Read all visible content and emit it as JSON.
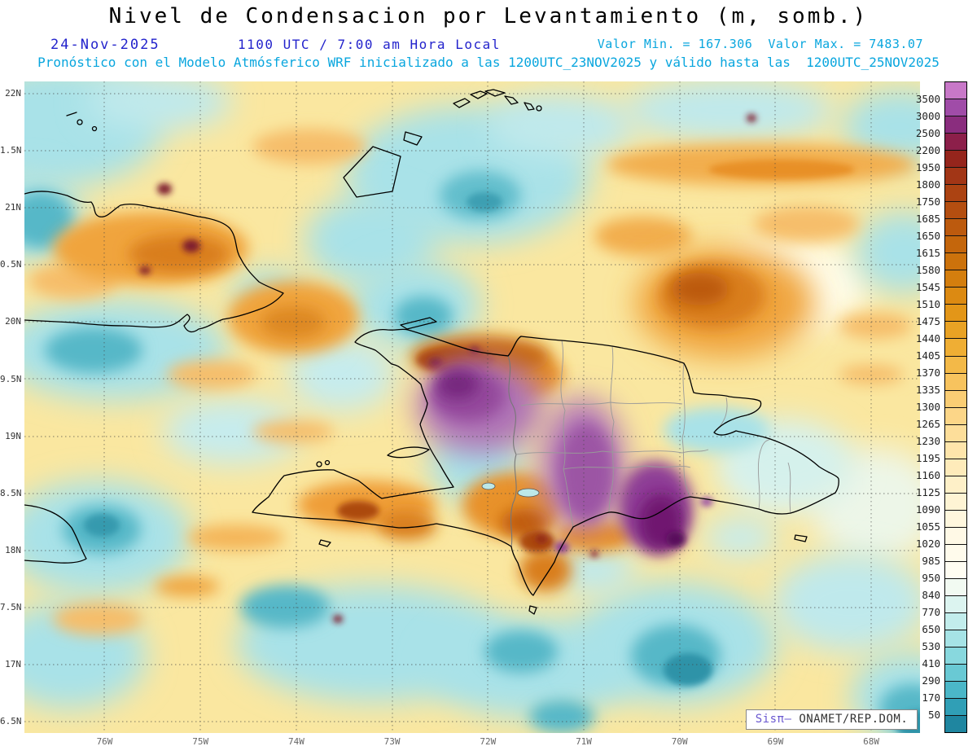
{
  "header": {
    "title": "Nivel de Condensacion por Levantamiento (m, somb.)",
    "date": "24-Nov-2025",
    "time": "1100 UTC / 7:00 am Hora Local",
    "min_max": "Valor Min. = 167.306  Valor Max. = 7483.07",
    "forecast": "Pronóstico con el Modelo Atmósferico WRF inicializado a las 1200UTC_23NOV2025 y válido hasta las  1200UTC_25NOV2025"
  },
  "axes": {
    "lat_labels": [
      "22N",
      "1.5N",
      "21N",
      "0.5N",
      "20N",
      "9.5N",
      "19N",
      "8.5N",
      "18N",
      "7.5N",
      "17N",
      "6.5N"
    ],
    "lon_labels": [
      "76W",
      "75W",
      "74W",
      "73W",
      "72W",
      "71W",
      "70W",
      "69W",
      "68W"
    ]
  },
  "colorbar": {
    "labels": [
      "3500",
      "3000",
      "2500",
      "2200",
      "1950",
      "1800",
      "1750",
      "1685",
      "1650",
      "1615",
      "1580",
      "1545",
      "1510",
      "1475",
      "1440",
      "1405",
      "1370",
      "1335",
      "1300",
      "1265",
      "1230",
      "1195",
      "1160",
      "1125",
      "1090",
      "1055",
      "1020",
      "985",
      "950",
      "840",
      "770",
      "650",
      "530",
      "410",
      "290",
      "170",
      "50"
    ],
    "colors": [
      "#C878C8",
      "#A04CA8",
      "#8A2D7E",
      "#8C1F4A",
      "#95251C",
      "#A23616",
      "#AC4312",
      "#B44E10",
      "#BC5A0E",
      "#C4660C",
      "#CC720C",
      "#D47E0E",
      "#DC8A12",
      "#E39618",
      "#E9A224",
      "#EFAE34",
      "#F3B948",
      "#F7C35E",
      "#FACD74",
      "#FCD688",
      "#FDDE9A",
      "#FEE5AB",
      "#FEEBBA",
      "#FEF0C8",
      "#FEF4D4",
      "#FFF7DE",
      "#FFF9E6",
      "#FFFBEC",
      "#FFFDF2",
      "#F2FAF2",
      "#DCF4F0",
      "#C2EDEC",
      "#A6E3E6",
      "#88D8DE",
      "#69C9D4",
      "#4BB7C8",
      "#309FB6",
      "#1F86A0"
    ]
  },
  "watermark": {
    "brand": "Sisπ–",
    "text": " ONAMET/REP.DOM."
  },
  "colors": {
    "header_blue": "#2323CC",
    "info_cyan": "#09A6DE",
    "watermark_purple": "#6A58D0"
  }
}
